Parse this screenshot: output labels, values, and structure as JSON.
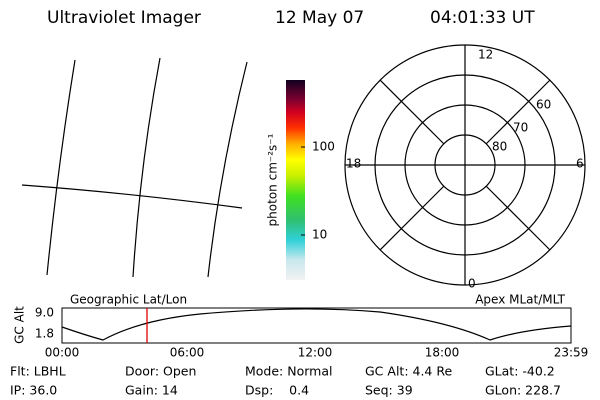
{
  "header": {
    "title": "Ultraviolet Imager",
    "date": "12 May 07",
    "time": "04:01:33 UT"
  },
  "colorbar": {
    "label": "photon cm⁻²s⁻¹",
    "ticks": [
      "100",
      "10"
    ]
  },
  "polar": {
    "mlt": [
      "12",
      "18",
      "6",
      "0"
    ],
    "mlat": [
      "60",
      "70",
      "80"
    ]
  },
  "timeline": {
    "left_title": "Geographic Lat/Lon",
    "right_title": "Apex MLat/MLT",
    "y_label": "GC Alt",
    "y_ticks": [
      "9.0",
      "1.8"
    ],
    "x_ticks": [
      "00:00",
      "06:00",
      "12:00",
      "18:00",
      "23:59"
    ]
  },
  "status": {
    "rows": [
      [
        "Flt: LBHL",
        "Door: Open",
        "Mode: Normal",
        "GC Alt: 4.4 Re",
        "GLat: -40.2"
      ],
      [
        "IP: 36.0",
        "Gain: 14",
        "Dsp:    0.4",
        "Seq: 39",
        "GLon: 228.7"
      ]
    ]
  }
}
